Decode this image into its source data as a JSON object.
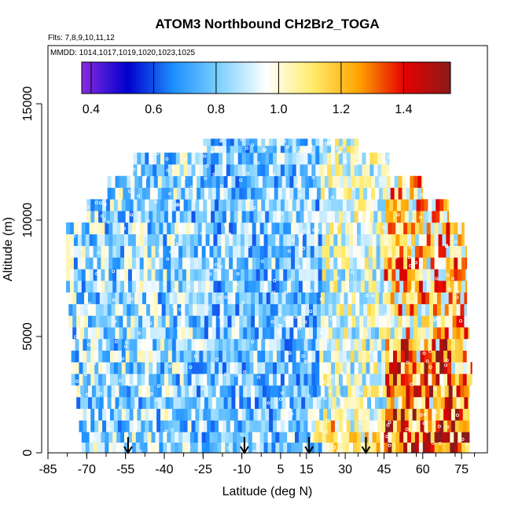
{
  "chart_data": {
    "type": "heatmap",
    "title": "ATOM3 Northbound CH2Br2_TOGA",
    "flights_note": "Flts: 7,8,9,10,11,12",
    "dates_note": "MMDD: 1014,1017,1019,1020,1023,1025",
    "xlabel": "Latitude (deg N)",
    "ylabel": "Altitude (m)",
    "xlim": [
      -85,
      85
    ],
    "ylim": [
      0,
      17500
    ],
    "x_ticks": [
      -85,
      -70,
      -55,
      -40,
      -25,
      -10,
      5,
      15,
      30,
      45,
      60,
      75
    ],
    "x_tick_labels": [
      "-85",
      "-70",
      "-55",
      "-40",
      "-25",
      "-10",
      "5",
      "15",
      "30",
      "45",
      "60",
      "75"
    ],
    "y_ticks": [
      0,
      5000,
      10000,
      15000
    ],
    "y_tick_labels": [
      "0",
      "5000",
      "10000",
      "15000"
    ],
    "colorbar": {
      "range": [
        0.37,
        1.55
      ],
      "ticks": [
        0.4,
        0.6,
        0.8,
        1.0,
        1.2,
        1.4
      ],
      "tick_labels": [
        "0.4",
        "0.6",
        "0.8",
        "1.0",
        "1.2",
        "1.4"
      ],
      "colors": [
        "#8a2be2",
        "#0000cd",
        "#1e90ff",
        "#7fd2ff",
        "#ffffff",
        "#ffec6e",
        "#ffa500",
        "#e60000",
        "#8b1a1a"
      ]
    },
    "arrow_latitudes": [
      -54,
      -9,
      16,
      38
    ],
    "layers": [
      {
        "alt_bot": 0,
        "alt_top": 900,
        "lat_min": -72,
        "lat_max": 78
      },
      {
        "alt_bot": 900,
        "alt_top": 1900,
        "lat_min": -73,
        "lat_max": 78
      },
      {
        "alt_bot": 1900,
        "alt_top": 2900,
        "lat_min": -74,
        "lat_max": 78
      },
      {
        "alt_bot": 2900,
        "alt_top": 3900,
        "lat_min": -76,
        "lat_max": 79
      },
      {
        "alt_bot": 3900,
        "alt_top": 4900,
        "lat_min": -76,
        "lat_max": 78
      },
      {
        "alt_bot": 4900,
        "alt_top": 5900,
        "lat_min": -77,
        "lat_max": 78
      },
      {
        "alt_bot": 5900,
        "alt_top": 6900,
        "lat_min": -77,
        "lat_max": 77
      },
      {
        "alt_bot": 6900,
        "alt_top": 7900,
        "lat_min": -78,
        "lat_max": 77
      },
      {
        "alt_bot": 7900,
        "alt_top": 8900,
        "lat_min": -78,
        "lat_max": 77
      },
      {
        "alt_bot": 8900,
        "alt_top": 9900,
        "lat_min": -78,
        "lat_max": 76
      },
      {
        "alt_bot": 9900,
        "alt_top": 10900,
        "lat_min": -70,
        "lat_max": 70
      },
      {
        "alt_bot": 10900,
        "alt_top": 11900,
        "lat_min": -62,
        "lat_max": 60
      },
      {
        "alt_bot": 11900,
        "alt_top": 12900,
        "lat_min": -52,
        "lat_max": 47
      },
      {
        "alt_bot": 12900,
        "alt_top": 13500,
        "lat_min": -25,
        "lat_max": 35
      }
    ],
    "value_ranges_by_latitude": [
      {
        "lat_from": -78,
        "lat_to": -30,
        "low": 0.62,
        "high": 1.05
      },
      {
        "lat_from": -30,
        "lat_to": 20,
        "low": 0.6,
        "high": 1.0
      },
      {
        "lat_from": 20,
        "lat_to": 45,
        "low": 0.75,
        "high": 1.15
      },
      {
        "lat_from": 45,
        "lat_to": 79,
        "low": 0.8,
        "high": 1.45
      }
    ]
  }
}
